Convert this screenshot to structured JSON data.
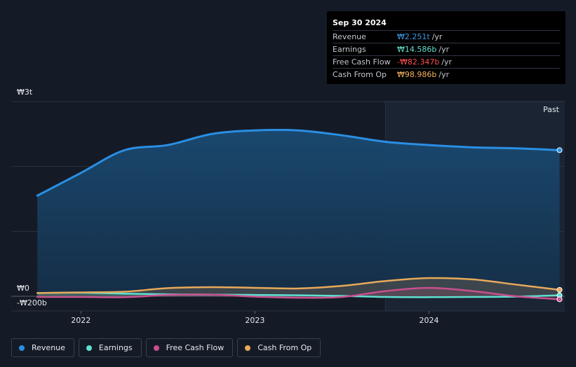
{
  "tooltip": {
    "date": "Sep 30 2024",
    "rows": [
      {
        "label": "Revenue",
        "value": "₩2.251t",
        "unit": "/yr",
        "color": "#3d9ae8"
      },
      {
        "label": "Earnings",
        "value": "₩14.586b",
        "unit": "/yr",
        "color": "#5ee0d0"
      },
      {
        "label": "Free Cash Flow",
        "value": "-₩82.347b",
        "unit": "/yr",
        "color": "#ff4d4d"
      },
      {
        "label": "Cash From Op",
        "value": "₩98.986b",
        "unit": "/yr",
        "color": "#f2b25c"
      }
    ]
  },
  "past_label": "Past",
  "legend": [
    {
      "label": "Revenue",
      "color": "#2a8fe4"
    },
    {
      "label": "Earnings",
      "color": "#5ee0d0"
    },
    {
      "label": "Free Cash Flow",
      "color": "#c8508f"
    },
    {
      "label": "Cash From Op",
      "color": "#e8a95a"
    }
  ],
  "chart_data": {
    "type": "area",
    "y_tick_labels": [
      "₩3t",
      "₩0",
      "-₩200b"
    ],
    "x_tick_labels": [
      "2022",
      "2023",
      "2024"
    ],
    "ylim": [
      -200,
      3000
    ],
    "xlim": [
      2021.6,
      2024.78
    ],
    "x_ticks": [
      2022.0,
      2023.0,
      2024.0
    ],
    "forecast_start": 2023.75,
    "series": [
      {
        "name": "Revenue",
        "color": "#2a8fe4",
        "x": [
          2021.75,
          2022.0,
          2022.25,
          2022.5,
          2022.75,
          2023.0,
          2023.25,
          2023.5,
          2023.75,
          2024.0,
          2024.25,
          2024.5,
          2024.75
        ],
        "values": [
          1550,
          1900,
          2250,
          2330,
          2500,
          2555,
          2555,
          2480,
          2380,
          2330,
          2295,
          2280,
          2251
        ]
      },
      {
        "name": "Earnings",
        "color": "#5ee0d0",
        "x": [
          2021.75,
          2022.0,
          2022.25,
          2022.5,
          2022.75,
          2023.0,
          2023.25,
          2023.5,
          2023.75,
          2024.0,
          2024.25,
          2024.5,
          2024.75
        ],
        "values": [
          50,
          55,
          40,
          30,
          25,
          20,
          15,
          5,
          -20,
          -25,
          -20,
          -10,
          14.586
        ]
      },
      {
        "name": "Free Cash Flow",
        "color": "#c8508f",
        "x": [
          2021.75,
          2022.0,
          2022.25,
          2022.5,
          2022.75,
          2023.0,
          2023.25,
          2023.5,
          2023.75,
          2024.0,
          2024.25,
          2024.5,
          2024.75
        ],
        "values": [
          -20,
          -20,
          -25,
          20,
          25,
          -10,
          -40,
          -20,
          80,
          130,
          80,
          0,
          -82.347
        ]
      },
      {
        "name": "Cash From Op",
        "color": "#e8a95a",
        "x": [
          2021.75,
          2022.0,
          2022.25,
          2022.5,
          2022.75,
          2023.0,
          2023.25,
          2023.5,
          2023.75,
          2024.0,
          2024.25,
          2024.5,
          2024.75
        ],
        "values": [
          50,
          60,
          70,
          125,
          140,
          130,
          120,
          160,
          235,
          280,
          260,
          180,
          98.986
        ]
      }
    ]
  }
}
